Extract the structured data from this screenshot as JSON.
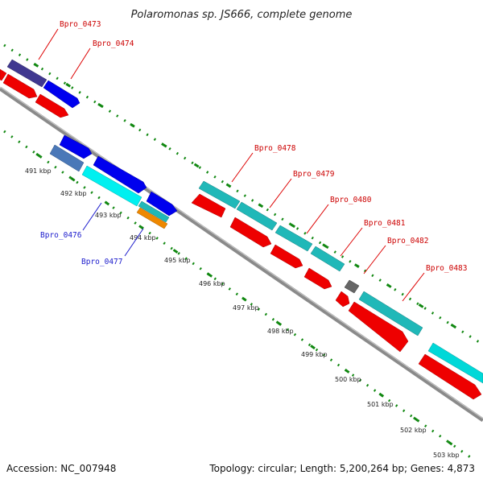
{
  "title": "Polaromonas sp. JS666, complete genome",
  "footer": {
    "accession": "Accession: NC_007948",
    "summary": "Topology: circular; Length: 5,200,264 bp; Genes: 4,873"
  },
  "ticks": [
    "491 kbp",
    "492 kbp",
    "493 kbp",
    "494 kbp",
    "495 kbp",
    "496 kbp",
    "497 kbp",
    "498 kbp",
    "499 kbp",
    "500 kbp",
    "501 kbp",
    "502 kbp",
    "503 kbp"
  ],
  "gene_labels": {
    "top": [
      "Bpro_0473",
      "Bpro_0474",
      "Bpro_0478",
      "Bpro_0479",
      "Bpro_0480",
      "Bpro_0481",
      "Bpro_0482",
      "Bpro_0483"
    ],
    "bottom": [
      "Bpro_0476",
      "Bpro_0477"
    ]
  },
  "colors": {
    "cds_forward": "#0000ee",
    "cds_reverse": "#ee0000",
    "cyan": "#00d0d0",
    "teal": "#20b8b8",
    "dark_purple": "#403890",
    "steel_blue": "#4a78b8",
    "orange": "#ee8800",
    "gray": "#666666",
    "backbone": "#8a8a8a",
    "tick": "#118811",
    "label_top": "#cc0000",
    "label_bottom": "#1a1acc"
  }
}
